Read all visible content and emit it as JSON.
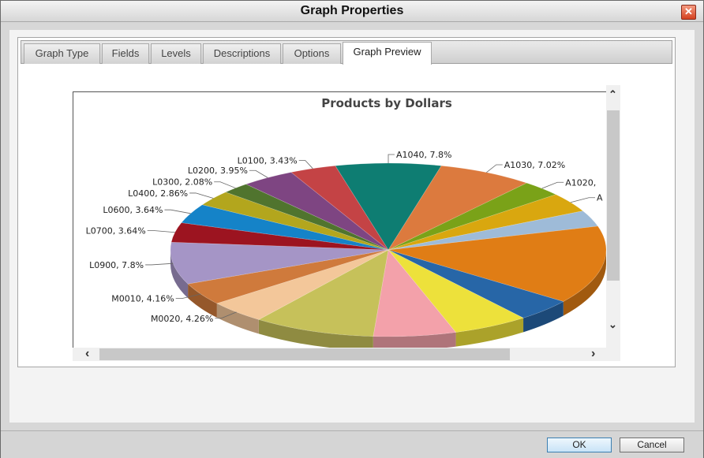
{
  "window": {
    "title": "Graph Properties",
    "close_label": "✕"
  },
  "tabs": [
    {
      "label": "Graph Type",
      "active": false
    },
    {
      "label": "Fields",
      "active": false
    },
    {
      "label": "Levels",
      "active": false
    },
    {
      "label": "Descriptions",
      "active": false
    },
    {
      "label": "Options",
      "active": false
    },
    {
      "label": "Graph Preview",
      "active": true
    }
  ],
  "footer": {
    "ok_label": "OK",
    "cancel_label": "Cancel"
  },
  "scroll": {
    "up": "⌃",
    "down": "⌄",
    "left": "‹",
    "right": "›"
  },
  "chart_data": {
    "type": "pie",
    "title": "Products by Dollars",
    "slices": [
      {
        "label": "A1040, 7.8%",
        "value": 7.8,
        "color": "#0e7d72"
      },
      {
        "label": "A1030, 7.02%",
        "value": 7.02,
        "color": "#dc7a3e"
      },
      {
        "label": "A1020,",
        "value": 3.0,
        "color": "#7aa218"
      },
      {
        "label": "A",
        "value": 3.6,
        "color": "#d9a70f"
      },
      {
        "label": "",
        "value": 3.0,
        "color": "#9ebbd8"
      },
      {
        "label": "",
        "value": 14.5,
        "color": "#e07d15"
      },
      {
        "label": "",
        "value": 4.2,
        "color": "#2766a7"
      },
      {
        "label": "",
        "value": 5.6,
        "color": "#ede13b"
      },
      {
        "label": "",
        "value": 6.1,
        "color": "#f3a1aa"
      },
      {
        "label": "",
        "value": 9.0,
        "color": "#c6c15a"
      },
      {
        "label": "M0020, 4.26%",
        "value": 4.26,
        "color": "#f3c79a"
      },
      {
        "label": "M0010, 4.16%",
        "value": 4.16,
        "color": "#cf7a3c"
      },
      {
        "label": "L0900, 7.8%",
        "value": 7.8,
        "color": "#a595c6"
      },
      {
        "label": "L0700, 3.64%",
        "value": 3.64,
        "color": "#9c1420"
      },
      {
        "label": "L0600, 3.64%",
        "value": 3.64,
        "color": "#1583c8"
      },
      {
        "label": "L0400, 2.86%",
        "value": 2.86,
        "color": "#b3a61d"
      },
      {
        "label": "L0300, 2.08%",
        "value": 2.08,
        "color": "#50742e"
      },
      {
        "label": "L0200, 3.95%",
        "value": 3.95,
        "color": "#7e4582"
      },
      {
        "label": "L0100, 3.43%",
        "value": 3.43,
        "color": "#c44345"
      }
    ]
  }
}
